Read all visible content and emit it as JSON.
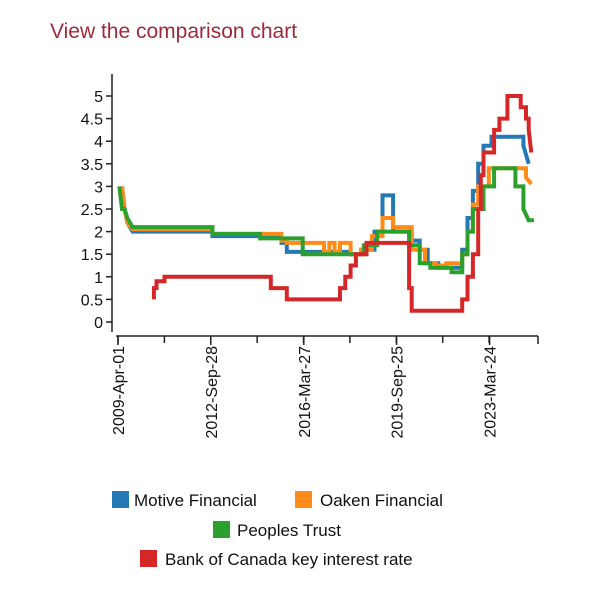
{
  "header": {
    "link_label": "View the comparison chart"
  },
  "chart_data": {
    "type": "line",
    "title": "",
    "xlabel": "",
    "ylabel": "",
    "x_start": "2009-Apr-01",
    "x_tick_labels": [
      "2009-Apr-01",
      "2012-Sep-28",
      "2016-Mar-27",
      "2019-Sep-25",
      "2023-Mar-24"
    ],
    "x_tick_years": [
      2009.25,
      2012.74,
      2016.24,
      2019.73,
      2023.23
    ],
    "xlim": [
      2009.25,
      2024.9
    ],
    "ylim": [
      0,
      5
    ],
    "y_ticks": [
      0,
      0.5,
      1,
      1.5,
      2,
      2.5,
      3,
      3.5,
      4,
      4.5,
      5
    ],
    "y_tick_labels": [
      "0",
      "0.5",
      "1",
      "1.5",
      "2",
      "2.5",
      "3",
      "3.5",
      "4",
      "4.5",
      "5"
    ],
    "series": [
      {
        "name": "Motive Financial",
        "color": "#2478b4",
        "x": [
          2009.4,
          2009.5,
          2009.6,
          2009.8,
          2012.8,
          2012.8,
          2015.4,
          2015.4,
          2015.6,
          2015.6,
          2018.0,
          2018.0,
          2018.4,
          2018.4,
          2018.9,
          2018.9,
          2019.2,
          2019.2,
          2019.6,
          2019.6,
          2020.3,
          2020.3,
          2020.6,
          2020.6,
          2020.9,
          2020.9,
          2021.3,
          2021.3,
          2022.2,
          2022.2,
          2022.4,
          2022.4,
          2022.6,
          2022.6,
          2022.8,
          2022.8,
          2023.0,
          2023.0,
          2023.3,
          2023.3,
          2024.5,
          2024.5,
          2024.7
        ],
        "y": [
          3.0,
          2.5,
          2.2,
          2.0,
          2.0,
          1.9,
          1.9,
          1.75,
          1.75,
          1.55,
          1.55,
          1.5,
          1.5,
          1.6,
          1.6,
          2.0,
          2.0,
          2.8,
          2.8,
          2.0,
          2.0,
          1.8,
          1.8,
          1.6,
          1.6,
          1.3,
          1.3,
          1.2,
          1.2,
          1.6,
          1.6,
          2.3,
          2.3,
          2.9,
          2.9,
          3.5,
          3.5,
          3.9,
          3.9,
          4.1,
          4.1,
          3.9,
          3.5
        ]
      },
      {
        "name": "Oaken Financial",
        "color": "#ff8c1a",
        "x": [
          2009.4,
          2009.5,
          2009.6,
          2009.8,
          2012.8,
          2012.8,
          2015.4,
          2015.4,
          2015.6,
          2015.6,
          2017.0,
          2017.0,
          2017.2,
          2017.2,
          2017.4,
          2017.4,
          2017.6,
          2017.6,
          2018.0,
          2018.0,
          2018.4,
          2018.4,
          2018.8,
          2018.8,
          2019.2,
          2019.2,
          2019.6,
          2019.6,
          2020.3,
          2020.3,
          2020.8,
          2020.8,
          2021.2,
          2021.2,
          2021.6,
          2021.6,
          2022.2,
          2022.2,
          2022.4,
          2022.4,
          2022.6,
          2022.6,
          2022.8,
          2022.8,
          2023.2,
          2023.2,
          2024.6,
          2024.6,
          2024.8
        ],
        "y": [
          3.0,
          2.5,
          2.2,
          2.05,
          2.05,
          1.95,
          1.95,
          1.8,
          1.8,
          1.75,
          1.75,
          1.55,
          1.55,
          1.75,
          1.75,
          1.55,
          1.55,
          1.75,
          1.75,
          1.5,
          1.5,
          1.6,
          1.6,
          1.9,
          1.9,
          2.3,
          2.3,
          2.1,
          2.1,
          1.6,
          1.6,
          1.3,
          1.3,
          1.25,
          1.25,
          1.3,
          1.3,
          1.5,
          1.5,
          2.0,
          2.0,
          2.6,
          2.6,
          3.0,
          3.0,
          3.4,
          3.4,
          3.2,
          3.05
        ]
      },
      {
        "name": "Peoples Trust",
        "color": "#2ca02c",
        "x": [
          2009.3,
          2009.4,
          2009.5,
          2009.6,
          2009.8,
          2012.8,
          2012.8,
          2014.6,
          2014.6,
          2016.2,
          2016.2,
          2017.5,
          2017.5,
          2018.5,
          2018.5,
          2019.0,
          2019.0,
          2020.2,
          2020.2,
          2020.6,
          2020.6,
          2021.0,
          2021.0,
          2021.8,
          2021.8,
          2022.2,
          2022.2,
          2022.4,
          2022.4,
          2022.6,
          2022.6,
          2023.0,
          2023.0,
          2023.4,
          2023.4,
          2024.2,
          2024.2,
          2024.5,
          2024.5,
          2024.7,
          2024.9
        ],
        "y": [
          3.0,
          2.5,
          2.5,
          2.3,
          2.1,
          2.1,
          1.95,
          1.95,
          1.85,
          1.85,
          1.5,
          1.5,
          1.5,
          1.5,
          1.7,
          1.7,
          2.0,
          2.0,
          1.7,
          1.7,
          1.3,
          1.3,
          1.2,
          1.2,
          1.1,
          1.1,
          1.5,
          1.5,
          2.0,
          2.0,
          2.5,
          2.5,
          3.0,
          3.0,
          3.4,
          3.4,
          3.0,
          3.0,
          2.5,
          2.25,
          2.25
        ]
      },
      {
        "name": "Bank of Canada key interest rate",
        "color": "#d62728",
        "x": [
          2010.6,
          2010.6,
          2010.7,
          2010.7,
          2011.0,
          2011.0,
          2015.0,
          2015.0,
          2015.6,
          2015.6,
          2017.6,
          2017.6,
          2017.8,
          2017.8,
          2018.0,
          2018.0,
          2018.2,
          2018.2,
          2018.6,
          2018.6,
          2018.8,
          2018.8,
          2020.2,
          2020.2,
          2020.3,
          2020.3,
          2022.2,
          2022.2,
          2022.4,
          2022.4,
          2022.6,
          2022.6,
          2022.8,
          2022.8,
          2022.9,
          2022.9,
          2023.0,
          2023.0,
          2023.4,
          2023.4,
          2023.6,
          2023.6,
          2023.9,
          2023.9,
          2024.4,
          2024.4,
          2024.6,
          2024.6,
          2024.7,
          2024.7,
          2024.8
        ],
        "y": [
          0.5,
          0.75,
          0.75,
          0.9,
          0.9,
          1.0,
          1.0,
          0.75,
          0.75,
          0.5,
          0.5,
          0.75,
          0.75,
          1.0,
          1.0,
          1.25,
          1.25,
          1.5,
          1.5,
          1.75,
          1.75,
          1.75,
          1.75,
          0.75,
          0.75,
          0.25,
          0.25,
          0.5,
          0.5,
          1.0,
          1.0,
          1.5,
          1.5,
          2.5,
          2.5,
          3.25,
          3.25,
          3.75,
          3.75,
          4.25,
          4.25,
          4.5,
          4.5,
          5.0,
          5.0,
          4.75,
          4.75,
          4.5,
          4.5,
          4.25,
          3.75
        ]
      }
    ],
    "legend": {
      "placement": "bottom",
      "entries": [
        {
          "label": "Motive Financial",
          "color": "#2478b4"
        },
        {
          "label": "Oaken Financial",
          "color": "#ff8c1a"
        },
        {
          "label": "Peoples Trust",
          "color": "#2ca02c"
        },
        {
          "label": "Bank of Canada key interest rate",
          "color": "#d62728"
        }
      ]
    }
  }
}
